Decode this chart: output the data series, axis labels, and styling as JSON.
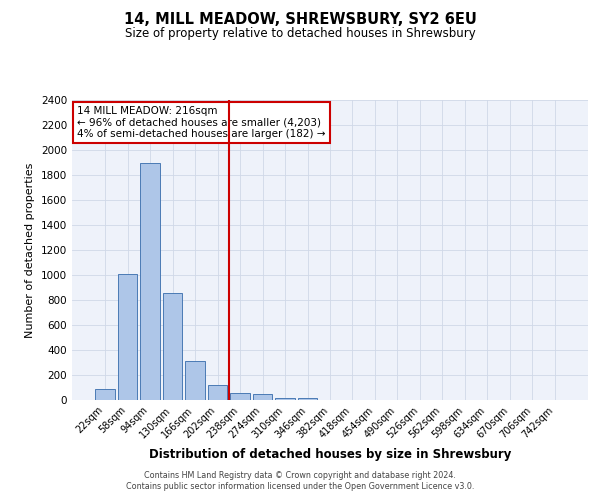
{
  "title": "14, MILL MEADOW, SHREWSBURY, SY2 6EU",
  "subtitle": "Size of property relative to detached houses in Shrewsbury",
  "xlabel": "Distribution of detached houses by size in Shrewsbury",
  "ylabel": "Number of detached properties",
  "bar_labels": [
    "22sqm",
    "58sqm",
    "94sqm",
    "130sqm",
    "166sqm",
    "202sqm",
    "238sqm",
    "274sqm",
    "310sqm",
    "346sqm",
    "382sqm",
    "418sqm",
    "454sqm",
    "490sqm",
    "526sqm",
    "562sqm",
    "598sqm",
    "634sqm",
    "670sqm",
    "706sqm",
    "742sqm"
  ],
  "bar_values": [
    90,
    1010,
    1900,
    860,
    315,
    120,
    55,
    50,
    20,
    15,
    0,
    0,
    0,
    0,
    0,
    0,
    0,
    0,
    0,
    0,
    0
  ],
  "bar_color": "#aec6e8",
  "bar_edgecolor": "#4a7ab5",
  "grid_color": "#d0d8e8",
  "bg_color": "#eef2fa",
  "vline_x": 5.5,
  "vline_color": "#cc0000",
  "annotation_text": "14 MILL MEADOW: 216sqm\n← 96% of detached houses are smaller (4,203)\n4% of semi-detached houses are larger (182) →",
  "annotation_box_color": "#ffffff",
  "annotation_box_edgecolor": "#cc0000",
  "ylim": [
    0,
    2400
  ],
  "yticks": [
    0,
    200,
    400,
    600,
    800,
    1000,
    1200,
    1400,
    1600,
    1800,
    2000,
    2200,
    2400
  ],
  "footer1": "Contains HM Land Registry data © Crown copyright and database right 2024.",
  "footer2": "Contains public sector information licensed under the Open Government Licence v3.0."
}
